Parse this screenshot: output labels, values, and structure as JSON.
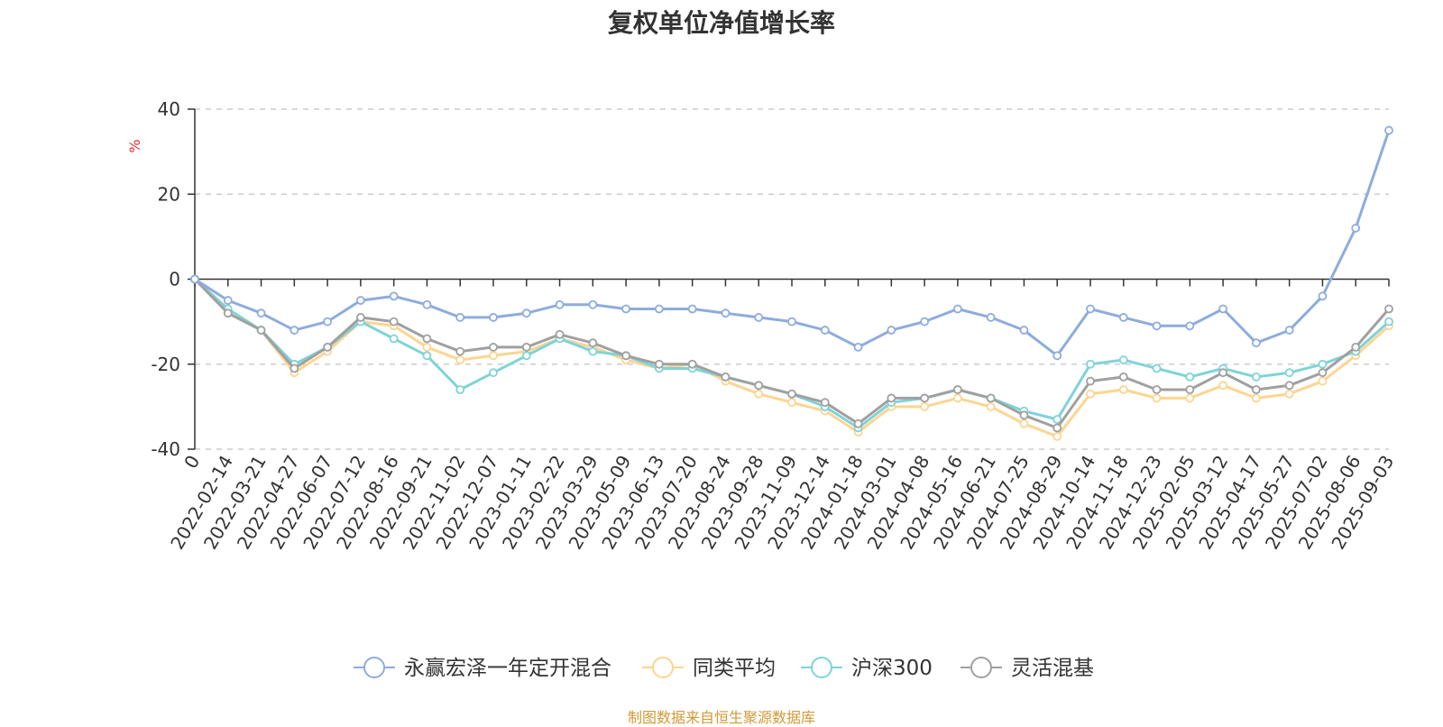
{
  "chart_data": {
    "type": "line",
    "title": "复权单位净值增长率",
    "ylabel": "%",
    "ylim": [
      -40,
      40
    ],
    "yticks": [
      40,
      20,
      0,
      -20,
      -40
    ],
    "grid": true,
    "legend_position": "bottom",
    "x_tick_labels": [
      "0",
      "2022-02-14",
      "2022-03-21",
      "2022-04-27",
      "2022-06-07",
      "2022-07-12",
      "2022-08-16",
      "2022-09-21",
      "2022-11-02",
      "2022-12-07",
      "2023-01-11",
      "2023-02-22",
      "2023-03-29",
      "2023-05-09",
      "2023-06-13",
      "2023-07-20",
      "2023-08-24",
      "2023-09-28",
      "2023-11-09",
      "2023-12-14",
      "2024-01-18",
      "2024-03-01",
      "2024-04-08",
      "2024-05-16",
      "2024-06-21",
      "2024-07-25",
      "2024-08-29",
      "2024-10-14",
      "2024-11-18",
      "2024-12-23",
      "2025-02-05",
      "2025-03-12",
      "2025-04-17",
      "2025-05-27",
      "2025-07-02",
      "2025-08-06",
      "2025-09-03"
    ],
    "series": [
      {
        "name": "永赢宏泽一年定开混合",
        "color": "#8eacdc",
        "values": [
          0,
          -5,
          -8,
          -12,
          -10,
          -5,
          -4,
          -6,
          -9,
          -9,
          -8,
          -6,
          -6,
          -7,
          -7,
          -7,
          -8,
          -9,
          -10,
          -12,
          -16,
          -12,
          -10,
          -7,
          -9,
          -12,
          -18,
          -7,
          -9,
          -11,
          -11,
          -7,
          -15,
          -12,
          -4,
          12,
          35
        ]
      },
      {
        "name": "同类平均",
        "color": "#fcd591",
        "values": [
          0,
          -8,
          -12,
          -22,
          -17,
          -10,
          -11,
          -16,
          -19,
          -18,
          -17,
          -14,
          -16,
          -19,
          -21,
          -20,
          -24,
          -27,
          -29,
          -31,
          -36,
          -30,
          -30,
          -28,
          -30,
          -34,
          -37,
          -27,
          -26,
          -28,
          -28,
          -25,
          -28,
          -27,
          -24,
          -18,
          -11
        ]
      },
      {
        "name": "沪深300",
        "color": "#7fd3d8",
        "values": [
          0,
          -7,
          -12,
          -20,
          -16,
          -10,
          -14,
          -18,
          -26,
          -22,
          -18,
          -14,
          -17,
          -18,
          -21,
          -21,
          -23,
          -25,
          -27,
          -30,
          -35,
          -29,
          -28,
          -26,
          -28,
          -31,
          -33,
          -20,
          -19,
          -21,
          -23,
          -21,
          -23,
          -22,
          -20,
          -17,
          -10
        ]
      },
      {
        "name": "灵活混基",
        "color": "#a0a0a0",
        "values": [
          0,
          -8,
          -12,
          -21,
          -16,
          -9,
          -10,
          -14,
          -17,
          -16,
          -16,
          -13,
          -15,
          -18,
          -20,
          -20,
          -23,
          -25,
          -27,
          -29,
          -34,
          -28,
          -28,
          -26,
          -28,
          -32,
          -35,
          -24,
          -23,
          -26,
          -26,
          -22,
          -26,
          -25,
          -22,
          -16,
          -7
        ]
      }
    ]
  },
  "source_note": "制图数据来自恒生聚源数据库"
}
